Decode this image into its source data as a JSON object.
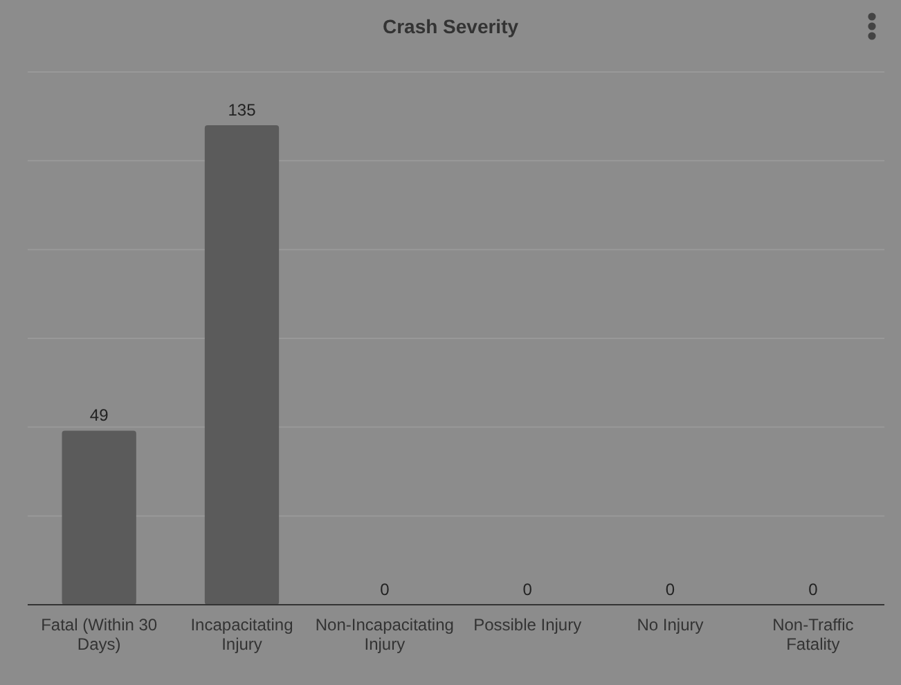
{
  "chart_data": {
    "type": "bar",
    "title": "Crash Severity",
    "categories": [
      "Fatal (Within 30 Days)",
      "Incapacitating Injury",
      "Non-Incapacitating Injury",
      "Possible Injury",
      "No Injury",
      "Non-Traffic Fatality"
    ],
    "values": [
      49,
      135,
      0,
      0,
      0,
      0
    ],
    "color": "#5b5b5b",
    "ylim": [
      0,
      150
    ],
    "yticks": [
      {
        "value": 0,
        "label": null
      },
      {
        "value": 25,
        "label": null
      },
      {
        "value": 50,
        "label": null
      },
      {
        "value": 75,
        "label": null
      },
      {
        "value": 100,
        "label": null
      },
      {
        "value": 125,
        "label": null
      },
      {
        "value": 150,
        "label": null
      }
    ],
    "grid": "y",
    "tick_labels": "x",
    "data_labels": true
  }
}
